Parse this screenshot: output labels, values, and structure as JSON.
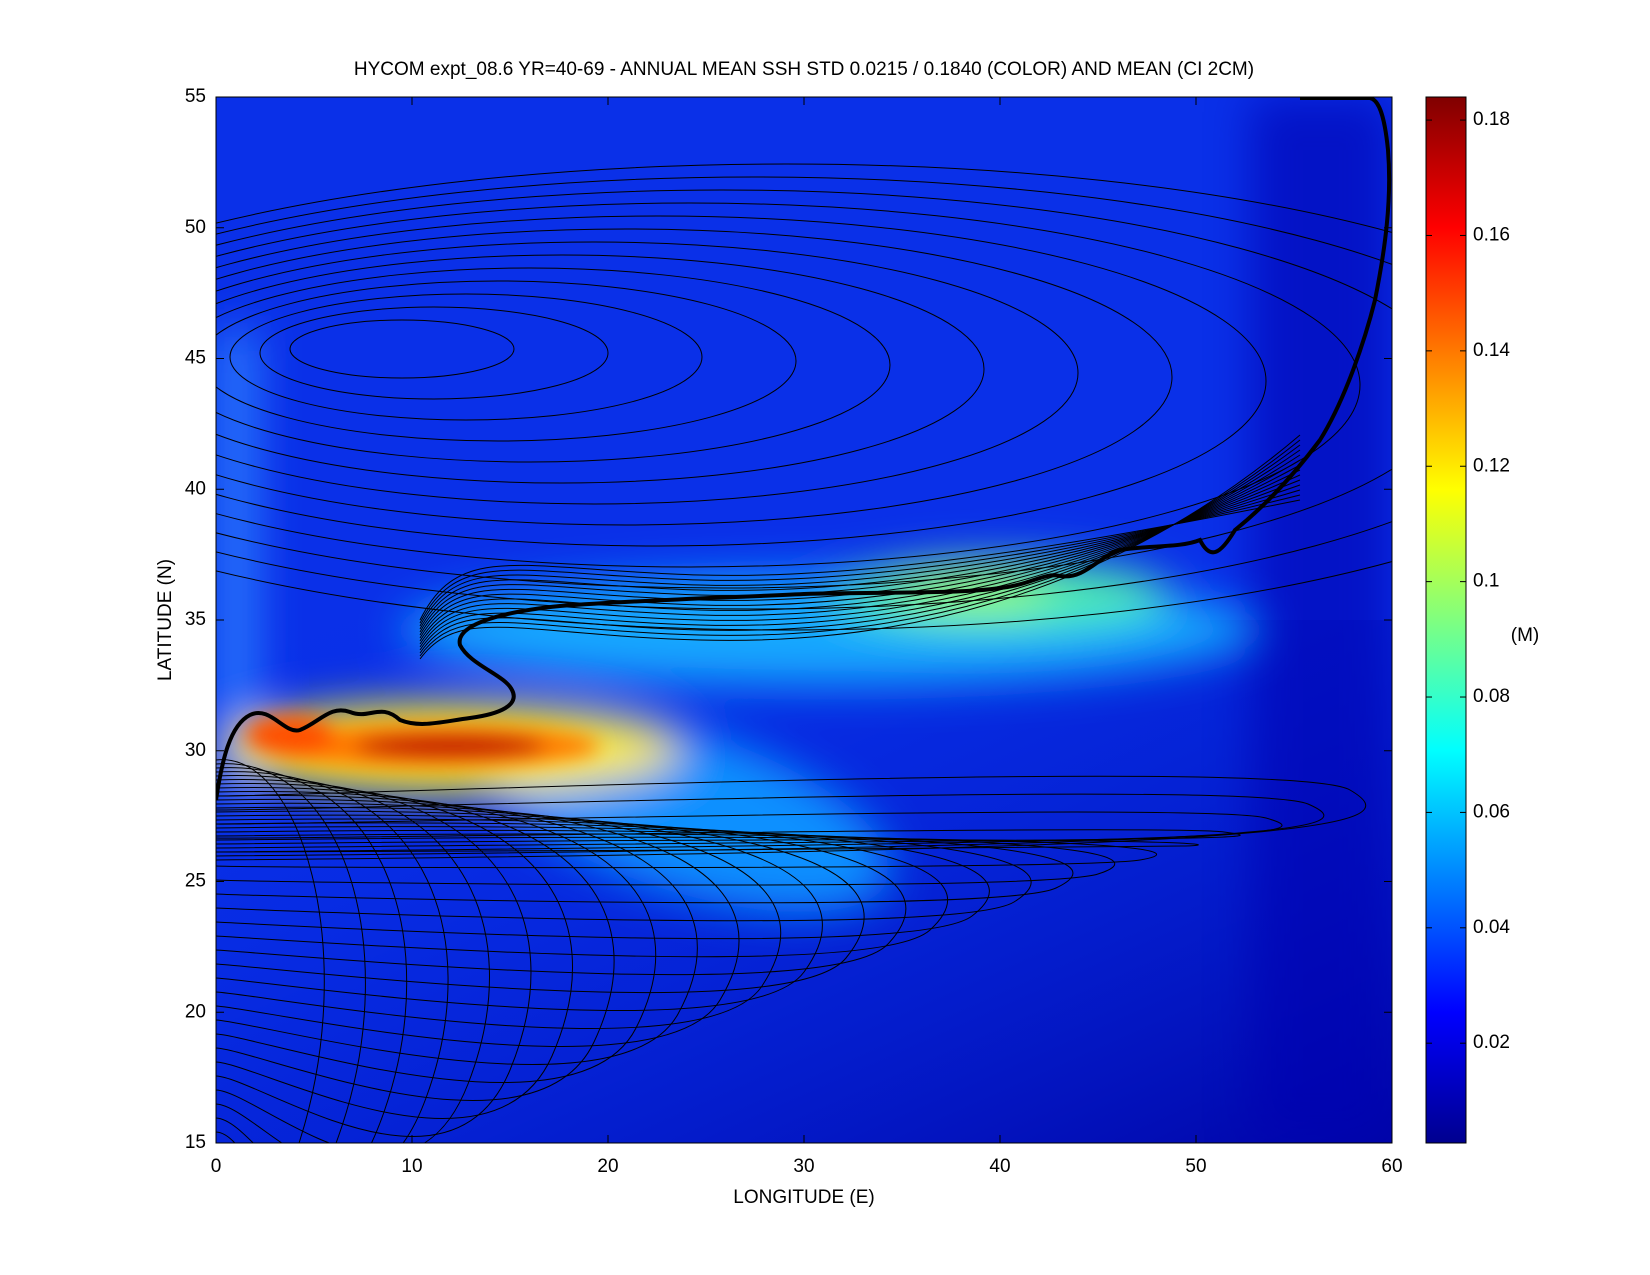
{
  "chart_data": {
    "type": "heatmap",
    "title": "HYCOM expt_08.6 YR=40-69 - ANNUAL MEAN SSH STD 0.0215 / 0.1840 (COLOR) AND MEAN (CI 2CM)",
    "x_label": "LONGITUDE (E)",
    "y_label": "LATITUDE (N)",
    "xlim": [
      0,
      60
    ],
    "ylim": [
      15,
      55
    ],
    "xticks": [
      0,
      10,
      20,
      30,
      40,
      50,
      60
    ],
    "yticks": [
      15,
      20,
      25,
      30,
      35,
      40,
      45,
      50,
      55
    ],
    "colorbar": {
      "label": "(M)",
      "clim": [
        0.0027,
        0.184
      ],
      "ticks": [
        0.02,
        0.04,
        0.06,
        0.08,
        0.1,
        0.12,
        0.14,
        0.16,
        0.18
      ],
      "colormap": "jet"
    }
  }
}
